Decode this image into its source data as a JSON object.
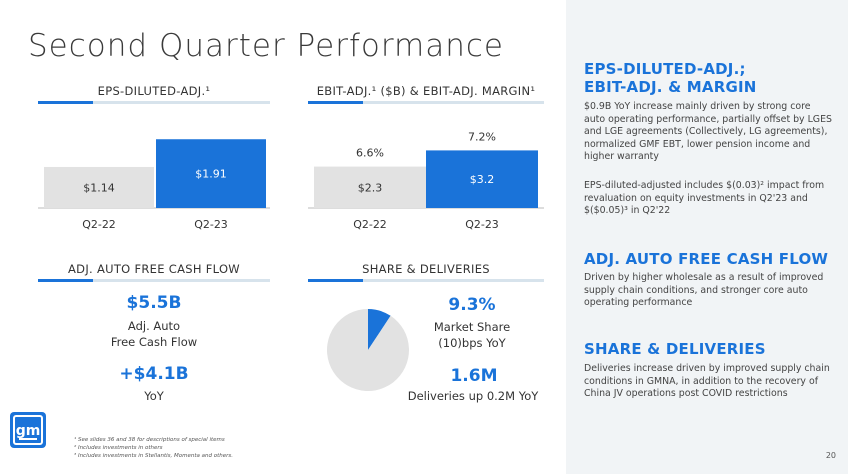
{
  "title": "Second Quarter Performance",
  "panels": {
    "eps_head": "EPS-DILUTED-ADJ.¹",
    "ebit_head": "EBIT-ADJ.¹ ($B) & EBIT-ADJ. MARGIN¹",
    "fcf_head": "ADJ. AUTO FREE CASH FLOW",
    "share_head": "SHARE & DELIVERIES"
  },
  "fcf": {
    "value": "$5.5B",
    "line1": "Adj. Auto",
    "line2": "Free Cash Flow",
    "delta": "+$4.1B",
    "delta_label": "YoY"
  },
  "share": {
    "market_share": "9.3%",
    "line1": "Market Share",
    "line2": "(10)bps YoY",
    "deliveries": "1.6M",
    "deliveries_label": "Deliveries up 0.2M YoY"
  },
  "right_panel": {
    "s1_head_1": "EPS-DILUTED-ADJ.;",
    "s1_head_2": "EBIT-ADJ. & MARGIN",
    "s1_body_1": "$0.9B YoY increase mainly driven by strong core auto operating performance, partially offset by LGES and LGE agreements (Collectively, LG agreements), normalized GMF EBT, lower pension income and higher warranty",
    "s1_body_2": "EPS-diluted-adjusted includes $(0.03)² impact from revaluation on equity investments in Q2'23 and $($0.05)³ in Q2'22",
    "s2_head": "ADJ. AUTO FREE CASH FLOW",
    "s2_body": "Driven by higher wholesale as a result of improved supply chain conditions, and stronger core auto operating performance",
    "s3_head": "SHARE & DELIVERIES",
    "s3_body": "Deliveries increase driven by improved supply chain conditions in GMNA, in addition to the recovery of China JV operations post COVID restrictions"
  },
  "logo_text": "gm",
  "footnotes": {
    "f1": "¹ See slides 36 and 38 for descriptions of special items",
    "f2": "² Includes investments in others",
    "f3": "³ Includes investments in Stellantis, Momenta and others."
  },
  "page_number": "20",
  "colors": {
    "blue": "#1a73d9",
    "grey": "#e2e2e2",
    "rule": "#d7e3ec",
    "panel_bg": "#f1f4f6"
  },
  "chart_data": [
    {
      "type": "bar",
      "categories": [
        "Q2-22",
        "Q2-23"
      ],
      "values": [
        1.14,
        1.91
      ],
      "value_labels": [
        "$1.14",
        "$1.91"
      ],
      "colors": [
        "#e2e2e2",
        "#1a73d9"
      ],
      "ylim": [
        0,
        2.0
      ]
    },
    {
      "type": "bar",
      "categories": [
        "Q2-22",
        "Q2-23"
      ],
      "values": [
        2.3,
        3.2
      ],
      "value_labels": [
        "$2.3",
        "$3.2"
      ],
      "margins": [
        6.6,
        7.2
      ],
      "margin_labels": [
        "6.6%",
        "7.2%"
      ],
      "colors": [
        "#e2e2e2",
        "#1a73d9"
      ],
      "ylim": [
        0,
        4.0
      ]
    },
    {
      "type": "pie",
      "values": [
        9.3,
        90.7
      ],
      "colors": [
        "#1a73d9",
        "#e2e2e2"
      ]
    }
  ]
}
